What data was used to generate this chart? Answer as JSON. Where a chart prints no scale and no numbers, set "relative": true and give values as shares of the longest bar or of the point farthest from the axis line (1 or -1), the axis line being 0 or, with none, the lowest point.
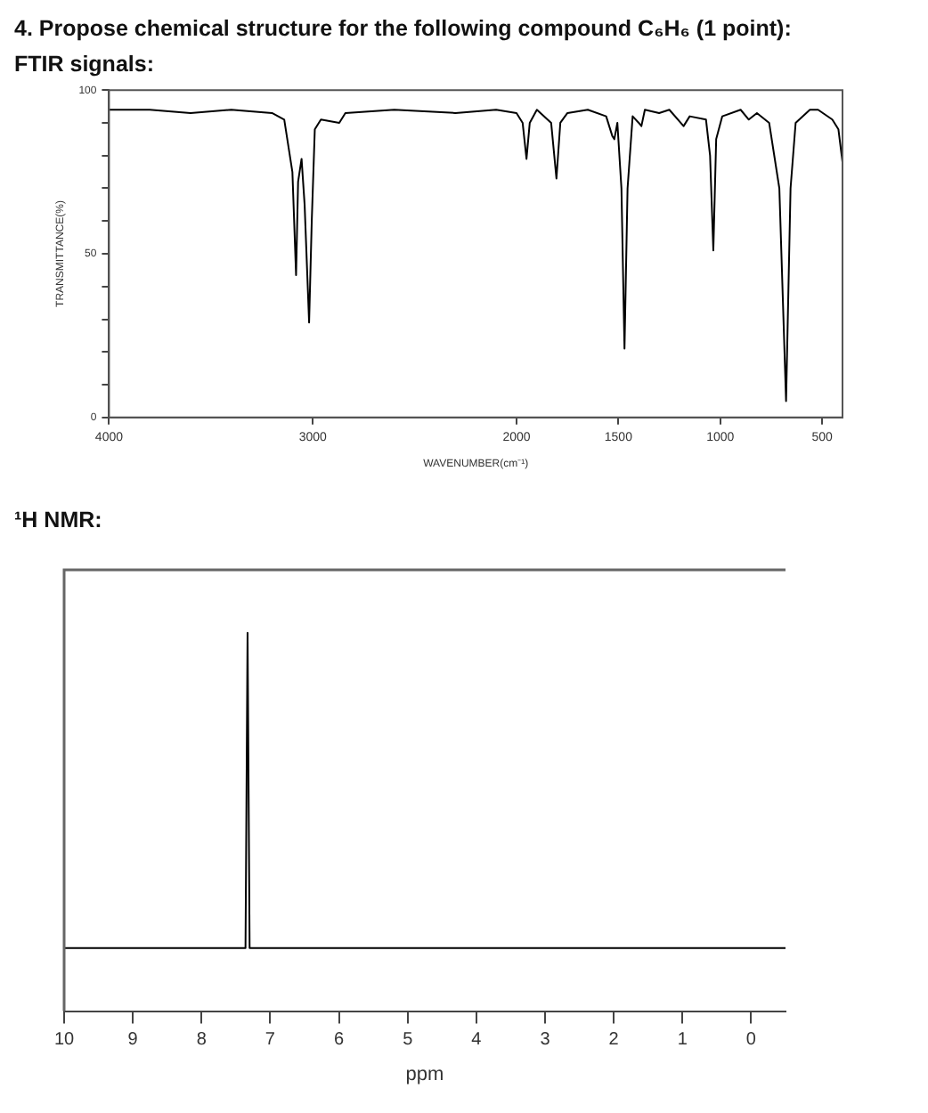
{
  "chart_data": [
    {
      "type": "line",
      "title": "4. Propose chemical structure for the following compound C₆H₆ (1 point):",
      "subtitle": "FTIR signals:",
      "xlabel": "WAVENUMBER(cm⁻¹)",
      "ylabel": "TRANSMITTANCE(%)",
      "marker": "none",
      "line_style": "solid",
      "xlim": [
        4000,
        400
      ],
      "xticks": [
        4000,
        3000,
        2000,
        1500,
        1000,
        500
      ],
      "ylim": [
        0,
        100
      ],
      "yticks": [
        0,
        {
          "value": 10,
          "label": null
        },
        {
          "value": 20,
          "label": null
        },
        {
          "value": 30,
          "label": null
        },
        {
          "value": 40,
          "label": null
        },
        50,
        {
          "value": 60,
          "label": null
        },
        {
          "value": 70,
          "label": null
        },
        {
          "value": 80,
          "label": null
        },
        {
          "value": 90,
          "label": null
        },
        100
      ],
      "series": [
        {
          "color": "#000000",
          "x": [
            4000,
            3800,
            3600,
            3400,
            3200,
            3140,
            3100,
            3082,
            3072,
            3055,
            3040,
            3018,
            3005,
            2990,
            2960,
            2870,
            2840,
            2600,
            2300,
            2100,
            2000,
            1970,
            1951,
            1935,
            1900,
            1830,
            1804,
            1785,
            1750,
            1650,
            1560,
            1530,
            1520,
            1505,
            1485,
            1470,
            1455,
            1430,
            1400,
            1387,
            1370,
            1300,
            1250,
            1180,
            1150,
            1070,
            1050,
            1034,
            1020,
            990,
            900,
            860,
            820,
            760,
            710,
            677,
            655,
            630,
            560,
            520,
            450,
            420,
            400
          ],
          "values": [
            94,
            94,
            93,
            94,
            93,
            91,
            75,
            43.5,
            72,
            79,
            65,
            29,
            60,
            88,
            91,
            90,
            93,
            94,
            93,
            94,
            93,
            90,
            79,
            90,
            94,
            90,
            73,
            90,
            93,
            94,
            92,
            86,
            85,
            90,
            70,
            21,
            70,
            92,
            90,
            89,
            94,
            93,
            94,
            89,
            92,
            91,
            80,
            51,
            85,
            92,
            94,
            91,
            93,
            90,
            70,
            5,
            70,
            90,
            94,
            94,
            91,
            88,
            78
          ]
        }
      ]
    },
    {
      "type": "line",
      "title": "¹H NMR:",
      "xlabel": "ppm",
      "relative": true,
      "tick_labels": "x",
      "marker": "none",
      "line_style": "solid",
      "xlim": [
        10,
        -0.5
      ],
      "xticks": [
        10,
        9,
        8,
        7,
        6,
        5,
        4,
        3,
        2,
        1,
        0
      ],
      "series": [
        {
          "color": "#000000",
          "x": [
            10,
            7.36,
            7.33,
            7.3,
            -0.5
          ],
          "values": [
            0,
            0,
            1,
            0,
            0
          ]
        }
      ]
    }
  ]
}
